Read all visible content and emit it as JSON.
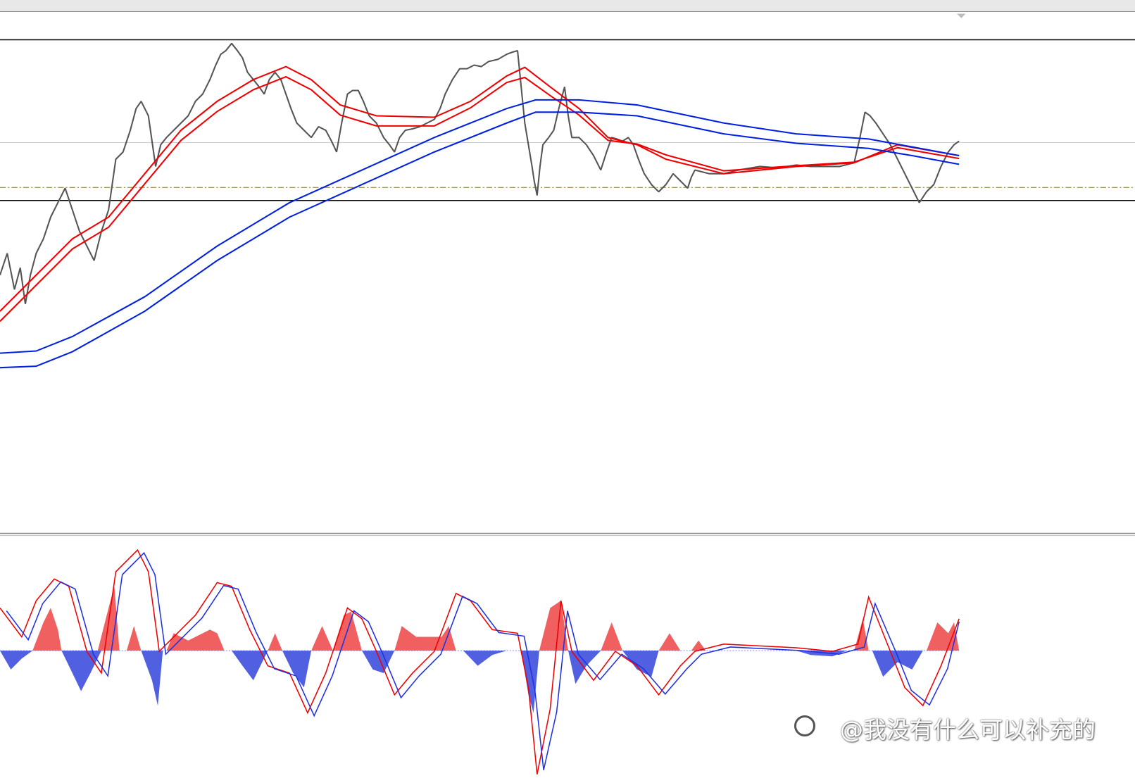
{
  "watermark": {
    "text": "@我没有什么可以补充的"
  }
}
